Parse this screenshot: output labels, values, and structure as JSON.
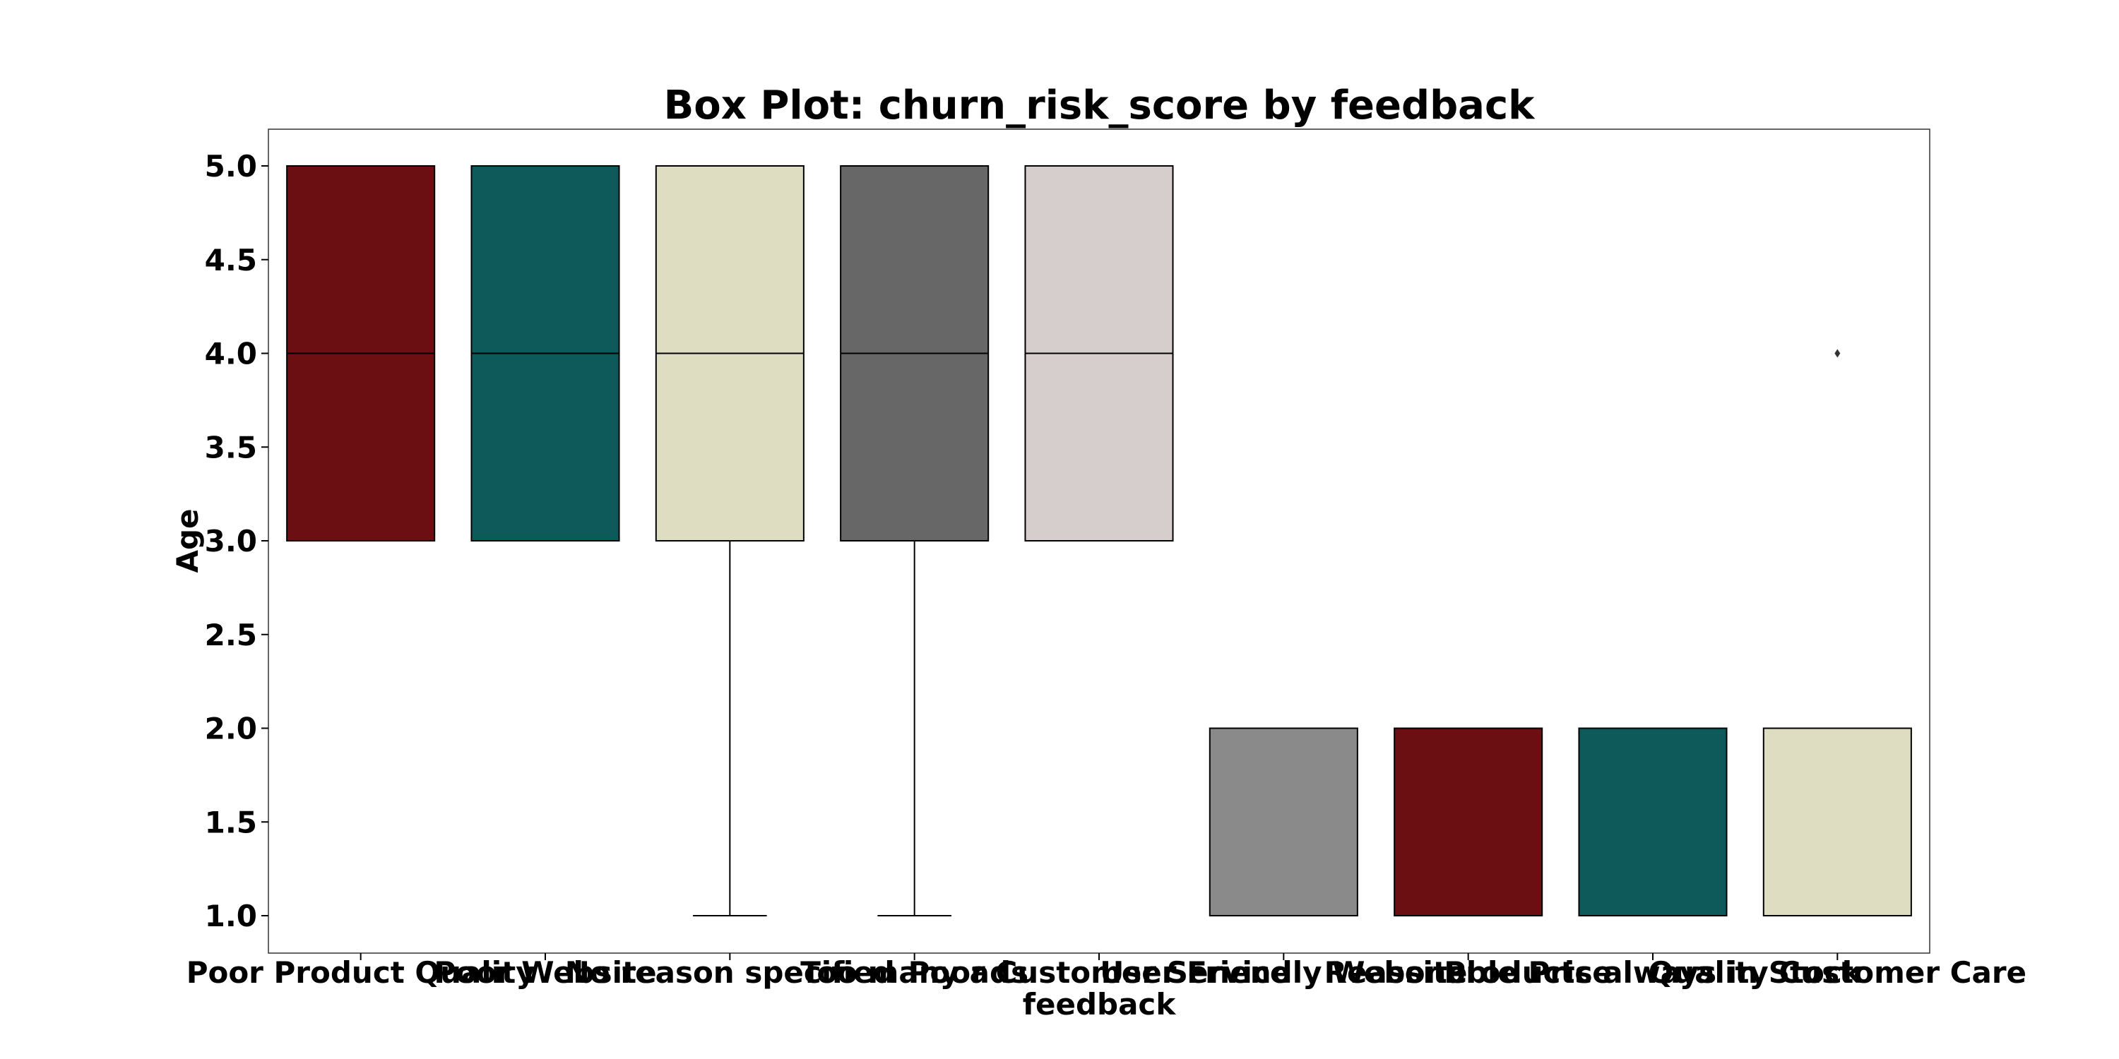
{
  "chart_data": {
    "type": "box",
    "title": "Box Plot: churn_risk_score by feedback",
    "xlabel": "feedback",
    "ylabel": "Age",
    "ylim": [
      0.8,
      5.2
    ],
    "yticks": [
      "1.0",
      "1.5",
      "2.0",
      "2.5",
      "3.0",
      "3.5",
      "4.0",
      "4.5",
      "5.0"
    ],
    "ytick_values": [
      1.0,
      1.5,
      2.0,
      2.5,
      3.0,
      3.5,
      4.0,
      4.5,
      5.0
    ],
    "grid": false,
    "legend": "none",
    "categories": [
      "Poor Product Quality",
      "Poor Website",
      "No reason specified",
      "Too many ads",
      "Poor Customer Service",
      "User Friendly Website",
      "Reasonable Price",
      "Products always in Stock",
      "Quality Customer Care"
    ],
    "boxes": [
      {
        "q1": 3,
        "median": 4,
        "q3": 5,
        "whisker_low": 3,
        "whisker_high": 5,
        "outliers": [],
        "color": "#6b0f12"
      },
      {
        "q1": 3,
        "median": 4,
        "q3": 5,
        "whisker_low": 3,
        "whisker_high": 5,
        "outliers": [],
        "color": "#0e5a5a"
      },
      {
        "q1": 3,
        "median": 4,
        "q3": 5,
        "whisker_low": 1,
        "whisker_high": 5,
        "outliers": [],
        "color": "#dedcc1"
      },
      {
        "q1": 3,
        "median": 4,
        "q3": 5,
        "whisker_low": 1,
        "whisker_high": 5,
        "outliers": [],
        "color": "#676767"
      },
      {
        "q1": 3,
        "median": 4,
        "q3": 5,
        "whisker_low": 3,
        "whisker_high": 5,
        "outliers": [],
        "color": "#d6cecd"
      },
      {
        "q1": 1,
        "median": 1,
        "q3": 2,
        "whisker_low": 1,
        "whisker_high": 2,
        "outliers": [],
        "color": "#8a8a8a"
      },
      {
        "q1": 1,
        "median": 1,
        "q3": 2,
        "whisker_low": 1,
        "whisker_high": 2,
        "outliers": [],
        "color": "#6b0f12"
      },
      {
        "q1": 1,
        "median": 1,
        "q3": 2,
        "whisker_low": 1,
        "whisker_high": 2,
        "outliers": [],
        "color": "#0e5a5a"
      },
      {
        "q1": 1,
        "median": 1,
        "q3": 2,
        "whisker_low": 1,
        "whisker_high": 2,
        "outliers": [
          4
        ],
        "color": "#dedcc1"
      }
    ]
  }
}
